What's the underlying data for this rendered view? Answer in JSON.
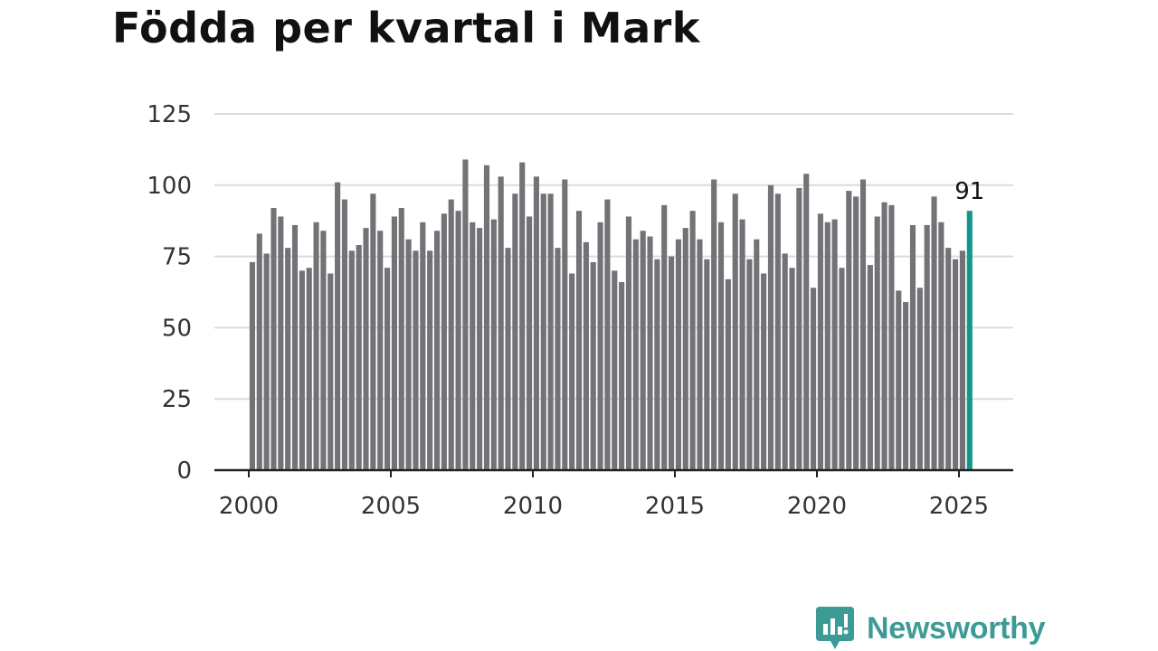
{
  "title": "Födda per kvartal i Mark",
  "brand": {
    "name": "Newsworthy",
    "icon": "newsworthy-logo-icon",
    "color": "#3c9b95"
  },
  "colors": {
    "bar": "#727277",
    "highlight": "#14968f",
    "grid": "#dcdcdc",
    "axis": "#222222"
  },
  "chart_data": {
    "type": "bar",
    "title": "Födda per kvartal i Mark",
    "xlabel": "",
    "ylabel": "",
    "ylim": [
      0,
      125
    ],
    "yticks": [
      "0",
      "25",
      "50",
      "75",
      "100",
      "125"
    ],
    "xticks": [
      "2000",
      "2005",
      "2010",
      "2015",
      "2020",
      "2025"
    ],
    "grid": true,
    "start_period": "2000 Q1",
    "frequency": "quarterly",
    "values": [
      73,
      83,
      76,
      92,
      89,
      78,
      86,
      70,
      71,
      87,
      84,
      69,
      101,
      95,
      77,
      79,
      85,
      97,
      84,
      71,
      89,
      92,
      81,
      77,
      87,
      77,
      84,
      90,
      95,
      91,
      109,
      87,
      85,
      107,
      88,
      103,
      78,
      97,
      108,
      89,
      103,
      97,
      97,
      78,
      102,
      69,
      91,
      80,
      73,
      87,
      95,
      70,
      66,
      89,
      81,
      84,
      82,
      74,
      93,
      75,
      81,
      85,
      91,
      81,
      74,
      102,
      87,
      67,
      97,
      88,
      74,
      81,
      69,
      100,
      97,
      76,
      71,
      99,
      104,
      64,
      90,
      87,
      88,
      71,
      98,
      96,
      102,
      72,
      89,
      94,
      93,
      63,
      59,
      86,
      64,
      86,
      96,
      87,
      78,
      74,
      77,
      91
    ],
    "highlight_last": true,
    "annotation": "91"
  }
}
